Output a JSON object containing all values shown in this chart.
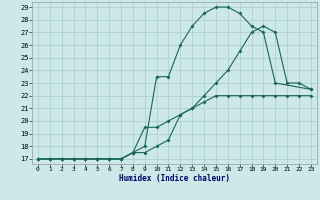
{
  "xlabel": "Humidex (Indice chaleur)",
  "bg_color": "#cce8e8",
  "grid_color": "#aacccc",
  "line_color": "#1a6655",
  "spine_color": "#999999",
  "label_color": "#000066",
  "xlim_min": -0.5,
  "xlim_max": 23.5,
  "ylim_min": 16.6,
  "ylim_max": 29.4,
  "yticks": [
    17,
    18,
    19,
    20,
    21,
    22,
    23,
    24,
    25,
    26,
    27,
    28,
    29
  ],
  "xticks": [
    0,
    1,
    2,
    3,
    4,
    5,
    6,
    7,
    8,
    9,
    10,
    11,
    12,
    13,
    14,
    15,
    16,
    17,
    18,
    19,
    20,
    21,
    22,
    23
  ],
  "line_top_x": [
    0,
    1,
    2,
    3,
    4,
    5,
    6,
    7,
    8,
    9,
    10,
    11,
    12,
    13,
    14,
    15,
    16,
    17,
    18,
    19,
    20,
    23
  ],
  "line_top_y": [
    17,
    17,
    17,
    17,
    17,
    17,
    17,
    17,
    17.5,
    18.0,
    23.5,
    23.5,
    26.0,
    27.5,
    28.5,
    29.0,
    29.0,
    28.5,
    27.5,
    27.0,
    23.0,
    22.5
  ],
  "line_mid_x": [
    0,
    1,
    2,
    3,
    4,
    5,
    6,
    7,
    8,
    9,
    10,
    11,
    12,
    13,
    14,
    15,
    16,
    17,
    18,
    19,
    20,
    21,
    22,
    23
  ],
  "line_mid_y": [
    17,
    17,
    17,
    17,
    17,
    17,
    17,
    17,
    17.5,
    17.5,
    18.0,
    18.5,
    20.5,
    21.0,
    22.0,
    23.0,
    24.0,
    25.5,
    27.0,
    27.5,
    27.0,
    23.0,
    23.0,
    22.5
  ],
  "line_bot_x": [
    0,
    1,
    2,
    3,
    4,
    5,
    6,
    7,
    8,
    9,
    10,
    11,
    12,
    13,
    14,
    15,
    16,
    17,
    18,
    19,
    20,
    21,
    22,
    23
  ],
  "line_bot_y": [
    17,
    17,
    17,
    17,
    17,
    17,
    17,
    17,
    17.5,
    19.5,
    19.5,
    20.0,
    20.5,
    21.0,
    21.5,
    22.0,
    22.0,
    22.0,
    22.0,
    22.0,
    22.0,
    22.0,
    22.0,
    22.0
  ]
}
